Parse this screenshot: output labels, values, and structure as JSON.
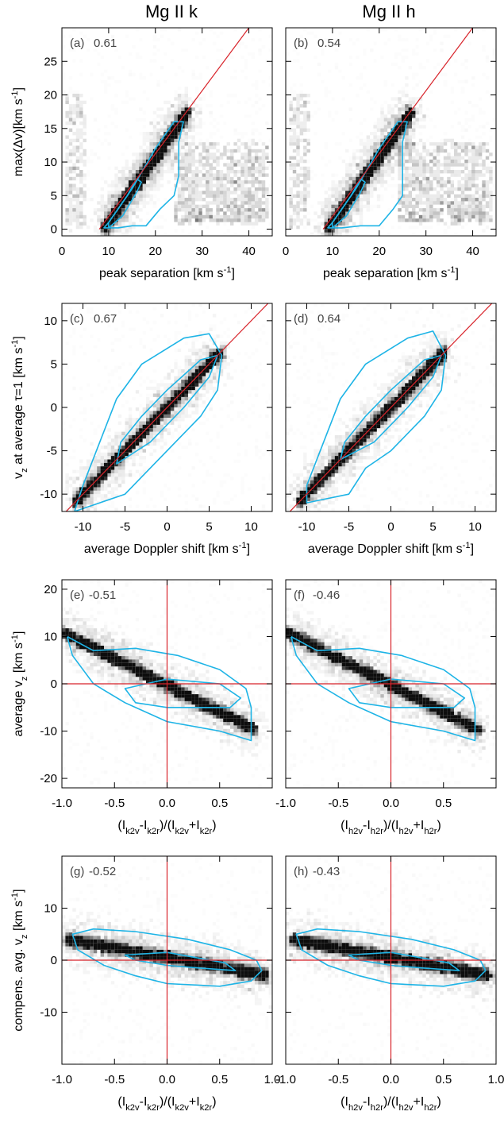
{
  "figure": {
    "column_titles": [
      "Mg II k",
      "Mg II h"
    ],
    "colors": {
      "reference_line": "#d8232a",
      "contour": "#1eb4e6",
      "density": "#000000",
      "axes": "#000000"
    }
  },
  "chart_data": [
    {
      "type": "heatmap",
      "id": "a",
      "panel_label": "(a)",
      "correlation": "0.61",
      "xlabel": "peak separation [km s⁻¹]",
      "ylabel": "max(Δv)[km s⁻¹]",
      "xlim": [
        0,
        45
      ],
      "ylim": [
        -1,
        30
      ],
      "xticks": [
        0,
        10,
        20,
        30,
        40
      ],
      "xticklabels": [
        "0",
        "10",
        "20",
        "30",
        "40"
      ],
      "yticks": [
        0,
        5,
        10,
        15,
        20,
        25
      ],
      "yticklabels": [
        "0",
        "5",
        "10",
        "15",
        "20",
        "25"
      ],
      "reference_lines": [
        {
          "kind": "diagonal",
          "from": [
            8,
            0
          ],
          "to": [
            40,
            30
          ]
        }
      ],
      "contours": {
        "outer": [
          [
            12,
            0.2
          ],
          [
            15,
            0.5
          ],
          [
            18,
            0.5
          ],
          [
            21,
            3
          ],
          [
            24,
            5
          ],
          [
            25,
            8
          ],
          [
            25,
            13
          ],
          [
            26,
            16
          ],
          [
            24,
            16
          ],
          [
            20,
            12
          ],
          [
            15,
            6
          ],
          [
            12,
            3
          ],
          [
            10,
            1
          ],
          [
            9,
            0.2
          ]
        ],
        "inner": [
          [
            10,
            0.2
          ],
          [
            13,
            2
          ],
          [
            16,
            5.5
          ],
          [
            17,
            7
          ],
          [
            16,
            7.5
          ],
          [
            14,
            5
          ],
          [
            12,
            3
          ],
          [
            10,
            1
          ]
        ]
      },
      "density": {
        "ridge": [
          [
            9,
            0
          ],
          [
            27,
            17.5
          ]
        ],
        "cloud_x": [
          24,
          44
        ],
        "cloud_y": [
          1,
          13
        ],
        "left_band_x": [
          1,
          5
        ]
      }
    },
    {
      "type": "heatmap",
      "id": "b",
      "panel_label": "(b)",
      "correlation": "0.54",
      "xlabel": "peak separation [km s⁻¹]",
      "ylabel": "",
      "xlim": [
        0,
        45
      ],
      "ylim": [
        -1,
        30
      ],
      "xticks": [
        0,
        10,
        20,
        30,
        40
      ],
      "xticklabels": [
        "0",
        "10",
        "20",
        "30",
        "40"
      ],
      "yticks": [
        0,
        5,
        10,
        15,
        20,
        25
      ],
      "yticklabels": [],
      "reference_lines": [
        {
          "kind": "diagonal",
          "from": [
            8,
            0
          ],
          "to": [
            40,
            30
          ]
        }
      ],
      "contours": {
        "outer": [
          [
            12,
            0.2
          ],
          [
            16,
            0.5
          ],
          [
            20,
            0.5
          ],
          [
            23,
            3
          ],
          [
            25,
            5
          ],
          [
            25,
            8
          ],
          [
            25,
            13
          ],
          [
            26,
            16
          ],
          [
            24,
            16
          ],
          [
            20,
            12
          ],
          [
            15,
            6
          ],
          [
            12,
            3
          ],
          [
            10,
            1
          ],
          [
            9,
            0.2
          ]
        ],
        "inner": [
          [
            10,
            0.2
          ],
          [
            13,
            2
          ],
          [
            16,
            5.5
          ],
          [
            17,
            7
          ],
          [
            16,
            7.5
          ],
          [
            14,
            5
          ],
          [
            12,
            3
          ],
          [
            10,
            1
          ]
        ]
      },
      "density": {
        "ridge": [
          [
            9,
            0
          ],
          [
            27,
            17.5
          ]
        ],
        "cloud_x": [
          24,
          44
        ],
        "cloud_y": [
          1,
          13
        ],
        "left_band_x": [
          1,
          5
        ]
      }
    },
    {
      "type": "heatmap",
      "id": "c",
      "panel_label": "(c)",
      "correlation": "0.67",
      "xlabel": "average Doppler shift [km s⁻¹]",
      "ylabel": "v_z at average τ=1 [km s⁻¹]",
      "xlim": [
        -12.5,
        12.5
      ],
      "ylim": [
        -12,
        12
      ],
      "xticks": [
        -10,
        -5,
        0,
        5,
        10
      ],
      "xticklabels": [
        "-10",
        "-5",
        "0",
        "5",
        "10"
      ],
      "yticks": [
        -10,
        -5,
        0,
        5,
        10
      ],
      "yticklabels": [
        "-10",
        "-5",
        "0",
        "5",
        "10"
      ],
      "reference_lines": [
        {
          "kind": "diagonal",
          "from": [
            -12.5,
            -12.5
          ],
          "to": [
            12.5,
            12.5
          ]
        }
      ],
      "contours": {
        "outer": [
          [
            -11,
            -12
          ],
          [
            -5,
            -10
          ],
          [
            -3,
            -8
          ],
          [
            0,
            -5
          ],
          [
            4,
            -1
          ],
          [
            6,
            2
          ],
          [
            6.5,
            6
          ],
          [
            5,
            8.5
          ],
          [
            2,
            8
          ],
          [
            -3,
            5
          ],
          [
            -6,
            1
          ],
          [
            -8,
            -4
          ],
          [
            -10,
            -9
          ]
        ],
        "inner": [
          [
            -6,
            -6.5
          ],
          [
            -2,
            -4
          ],
          [
            2,
            0
          ],
          [
            5,
            3.5
          ],
          [
            6,
            6
          ],
          [
            4,
            5.5
          ],
          [
            0,
            2
          ],
          [
            -3,
            -1
          ],
          [
            -5.5,
            -4
          ]
        ]
      },
      "density": {
        "ridge": [
          [
            -11,
            -11
          ],
          [
            6.5,
            6.5
          ]
        ]
      }
    },
    {
      "type": "heatmap",
      "id": "d",
      "panel_label": "(d)",
      "correlation": "0.64",
      "xlabel": "average Doppler shift [km s⁻¹]",
      "ylabel": "",
      "xlim": [
        -12.5,
        12.5
      ],
      "ylim": [
        -12,
        12
      ],
      "xticks": [
        -10,
        -5,
        0,
        5,
        10
      ],
      "xticklabels": [
        "-10",
        "-5",
        "0",
        "5",
        "10"
      ],
      "yticks": [
        -10,
        -5,
        0,
        5,
        10
      ],
      "yticklabels": [],
      "reference_lines": [
        {
          "kind": "diagonal",
          "from": [
            -12.5,
            -12.5
          ],
          "to": [
            12.5,
            12.5
          ]
        }
      ],
      "contours": {
        "outer": [
          [
            -10,
            -11
          ],
          [
            -5,
            -10
          ],
          [
            -3,
            -7
          ],
          [
            0,
            -5
          ],
          [
            4,
            -1
          ],
          [
            6,
            2
          ],
          [
            6.5,
            6
          ],
          [
            5,
            8.8
          ],
          [
            2,
            8
          ],
          [
            -3,
            5
          ],
          [
            -6,
            1
          ],
          [
            -8,
            -4
          ],
          [
            -10,
            -9
          ]
        ],
        "inner": [
          [
            -6,
            -6
          ],
          [
            -2,
            -4
          ],
          [
            2,
            0
          ],
          [
            5,
            3.5
          ],
          [
            6,
            6
          ],
          [
            4,
            5.5
          ],
          [
            0,
            2
          ],
          [
            -3,
            -1
          ],
          [
            -5.5,
            -4
          ]
        ]
      },
      "density": {
        "ridge": [
          [
            -11,
            -11
          ],
          [
            6.5,
            6.5
          ]
        ]
      }
    },
    {
      "type": "heatmap",
      "id": "e",
      "panel_label": "(e)",
      "correlation": "-0.51",
      "xlabel": "(I_k2v-I_k2r)/(I_k2v+I_k2r)",
      "ylabel": "average v_z [km s⁻¹]",
      "xlim": [
        -1,
        1
      ],
      "ylim": [
        -22,
        22
      ],
      "xticks": [
        -1,
        -0.5,
        0,
        0.5
      ],
      "xticklabels": [
        "-1.0",
        "-0.5",
        "0.0",
        "0.5"
      ],
      "yticks": [
        -20,
        -10,
        0,
        10,
        20
      ],
      "yticklabels": [
        "-20",
        "-10",
        "0",
        "10",
        "20"
      ],
      "reference_lines": [
        {
          "kind": "vertical",
          "x": 0
        },
        {
          "kind": "horizontal",
          "y": 0
        }
      ],
      "contours": {
        "outer": [
          [
            -0.95,
            10
          ],
          [
            -0.7,
            7
          ],
          [
            -0.3,
            7.5
          ],
          [
            0.1,
            6
          ],
          [
            0.5,
            3
          ],
          [
            0.75,
            -1
          ],
          [
            0.8,
            -5
          ],
          [
            0.8,
            -12
          ],
          [
            0.5,
            -10
          ],
          [
            0,
            -8
          ],
          [
            -0.4,
            -4
          ],
          [
            -0.7,
            0
          ],
          [
            -0.9,
            6
          ]
        ],
        "inner": [
          [
            -0.4,
            -1
          ],
          [
            0,
            1
          ],
          [
            0.5,
            0
          ],
          [
            0.7,
            -3
          ],
          [
            0.6,
            -5
          ],
          [
            0,
            -5
          ],
          [
            -0.3,
            -4
          ]
        ]
      },
      "density": {
        "ridge": [
          [
            -1,
            11
          ],
          [
            0.85,
            -10
          ]
        ]
      }
    },
    {
      "type": "heatmap",
      "id": "f",
      "panel_label": "(f)",
      "correlation": "-0.46",
      "xlabel": "(I_h2v-I_h2r)/(I_h2v+I_h2r)",
      "ylabel": "",
      "xlim": [
        -1,
        1
      ],
      "ylim": [
        -22,
        22
      ],
      "xticks": [
        -1,
        -0.5,
        0,
        0.5
      ],
      "xticklabels": [
        "-1.0",
        "-0.5",
        "0.0",
        "0.5"
      ],
      "yticks": [
        -20,
        -10,
        0,
        10,
        20
      ],
      "yticklabels": [],
      "reference_lines": [
        {
          "kind": "vertical",
          "x": 0
        },
        {
          "kind": "horizontal",
          "y": 0
        }
      ],
      "contours": {
        "outer": [
          [
            -0.95,
            10
          ],
          [
            -0.7,
            7
          ],
          [
            -0.3,
            7.5
          ],
          [
            0.1,
            6
          ],
          [
            0.5,
            3
          ],
          [
            0.75,
            -1
          ],
          [
            0.8,
            -5
          ],
          [
            0.8,
            -12
          ],
          [
            0.5,
            -10
          ],
          [
            0,
            -8
          ],
          [
            -0.4,
            -4
          ],
          [
            -0.7,
            0
          ],
          [
            -0.9,
            6
          ]
        ],
        "inner": [
          [
            -0.4,
            -1
          ],
          [
            0,
            1
          ],
          [
            0.5,
            0
          ],
          [
            0.7,
            -3
          ],
          [
            0.6,
            -5
          ],
          [
            0,
            -5
          ],
          [
            -0.3,
            -4
          ]
        ]
      },
      "density": {
        "ridge": [
          [
            -1,
            11
          ],
          [
            0.85,
            -10
          ]
        ]
      }
    },
    {
      "type": "heatmap",
      "id": "g",
      "panel_label": "(g)",
      "correlation": "-0.52",
      "xlabel": "(I_k2v-I_k2r)/(I_k2v+I_k2r)",
      "ylabel": "compens. avg. v_z [km s⁻¹]",
      "xlim": [
        -1,
        1
      ],
      "ylim": [
        -20,
        20
      ],
      "xticks": [
        -1,
        -0.5,
        0,
        0.5,
        1
      ],
      "xticklabels": [
        "-1.0",
        "-0.5",
        "0.0",
        "0.5",
        "1.0"
      ],
      "yticks": [
        -10,
        0,
        10
      ],
      "yticklabels": [
        "-10",
        "0",
        "10"
      ],
      "reference_lines": [
        {
          "kind": "vertical",
          "x": 0
        },
        {
          "kind": "horizontal",
          "y": 0
        }
      ],
      "contours": {
        "outer": [
          [
            -0.9,
            5
          ],
          [
            -0.7,
            6
          ],
          [
            -0.3,
            5.5
          ],
          [
            0.2,
            4
          ],
          [
            0.6,
            2
          ],
          [
            0.85,
            0
          ],
          [
            0.9,
            -2
          ],
          [
            0.8,
            -4
          ],
          [
            0.5,
            -5
          ],
          [
            0,
            -4.5
          ],
          [
            -0.3,
            -3
          ],
          [
            -0.6,
            -1
          ],
          [
            -0.85,
            2
          ]
        ],
        "inner": [
          [
            -0.4,
            1
          ],
          [
            0,
            1.5
          ],
          [
            0.55,
            -0.5
          ],
          [
            0.65,
            -2
          ],
          [
            0.3,
            -1.5
          ],
          [
            0,
            -1
          ],
          [
            -0.3,
            0
          ]
        ]
      },
      "density": {
        "ridge": [
          [
            -0.95,
            4
          ],
          [
            0.95,
            -3
          ]
        ]
      }
    },
    {
      "type": "heatmap",
      "id": "h",
      "panel_label": "(h)",
      "correlation": "-0.43",
      "xlabel": "(I_h2v-I_h2r)/(I_h2v+I_h2r)",
      "ylabel": "",
      "xlim": [
        -1,
        1
      ],
      "ylim": [
        -20,
        20
      ],
      "xticks": [
        -1,
        -0.5,
        0,
        0.5,
        1
      ],
      "xticklabels": [
        "-1.0",
        "-0.5",
        "0.0",
        "0.5",
        "1.0"
      ],
      "yticks": [
        -10,
        0,
        10
      ],
      "yticklabels": [],
      "reference_lines": [
        {
          "kind": "vertical",
          "x": 0
        },
        {
          "kind": "horizontal",
          "y": 0
        }
      ],
      "contours": {
        "outer": [
          [
            -0.9,
            5
          ],
          [
            -0.7,
            6
          ],
          [
            -0.3,
            5.5
          ],
          [
            0.2,
            4
          ],
          [
            0.6,
            2
          ],
          [
            0.85,
            0
          ],
          [
            0.9,
            -2
          ],
          [
            0.8,
            -4
          ],
          [
            0.5,
            -5
          ],
          [
            0,
            -4.5
          ],
          [
            -0.3,
            -3
          ],
          [
            -0.6,
            -1
          ],
          [
            -0.85,
            2
          ]
        ],
        "inner": [
          [
            -0.4,
            1
          ],
          [
            0,
            1.5
          ],
          [
            0.55,
            -0.5
          ],
          [
            0.65,
            -2
          ],
          [
            0.3,
            -1.5
          ],
          [
            0,
            -1
          ],
          [
            -0.3,
            0
          ]
        ]
      },
      "density": {
        "ridge": [
          [
            -0.95,
            4
          ],
          [
            0.95,
            -3
          ]
        ]
      }
    }
  ]
}
